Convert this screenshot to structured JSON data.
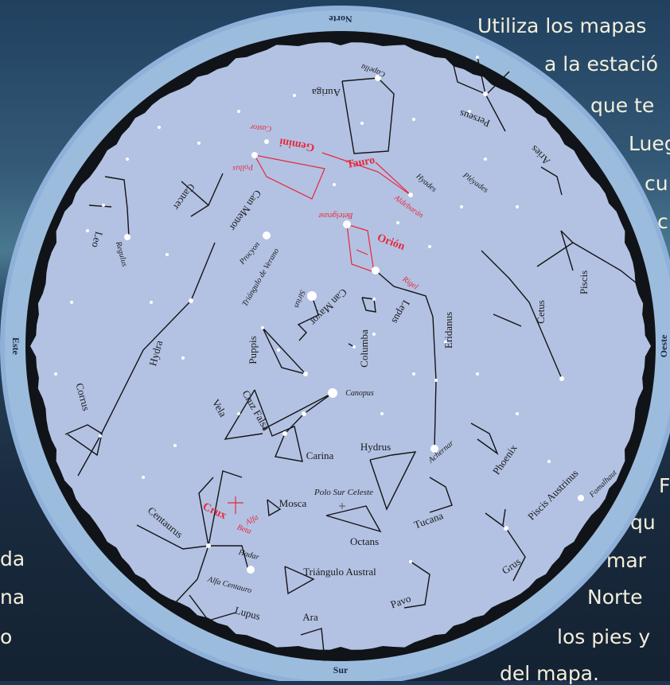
{
  "background_text": {
    "top_right_lines": [
      "Utiliza los mapas",
      "a la estació",
      "que te",
      "Lueg",
      "cu",
      "c"
    ],
    "bottom_right_lines": [
      "F",
      "qu",
      "mar",
      "Norte",
      "los pies y",
      "del mapa."
    ],
    "bottom_left_lines": [
      "da",
      "na",
      "o"
    ]
  },
  "cardinal": {
    "north": "Norte",
    "south": "Sur",
    "east": "Este",
    "west": "Oeste"
  },
  "highlight_color": "#e8283c",
  "line_color": "#141414",
  "map_bg_color": "#b3c2e3",
  "ring_color": "#93b4da",
  "constellations": [
    "Auriga",
    "Perseus",
    "Aries",
    "Piscis",
    "Cetus",
    "Eridanus",
    "Lepus",
    "Columba",
    "Can Mayor",
    "Puppis",
    "Hydra",
    "Corrus",
    "Vela",
    "Cruz Falsa",
    "Carina",
    "Hydrus",
    "Phoenix",
    "Piscis Austrinus",
    "Tucana",
    "Octans",
    "Mosca",
    "Centaurus",
    "Triángulo Austral",
    "Pavo",
    "Grus",
    "Ara",
    "Lupus",
    "Leo",
    "Cancer",
    "Can Menor",
    "Gemini",
    "Tauro",
    "Orión",
    "Crux"
  ],
  "stars": [
    "Capella",
    "Castor",
    "Pollux",
    "Aldebarán",
    "Hyades",
    "Pléyades",
    "Betelgeuse",
    "Rigel",
    "Procyon",
    "Sirius",
    "Canopus",
    "Achernar",
    "Fomalhaut",
    "Regulus",
    "Hadar",
    "Alfa Centauro",
    "Alfa",
    "Beta"
  ],
  "other_labels": {
    "triangulo_verano": "Triángulo de Verano",
    "polo_sur": "Polo Sur Celeste"
  }
}
